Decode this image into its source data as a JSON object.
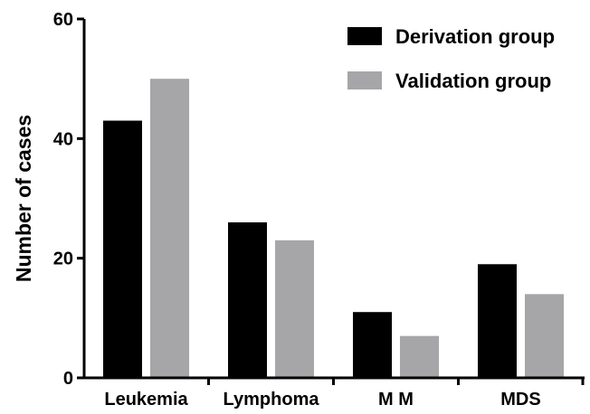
{
  "chart_data": {
    "type": "bar",
    "title": "",
    "xlabel": "",
    "ylabel": "Number of cases",
    "ylim": [
      0,
      60
    ],
    "yticks": [
      0,
      20,
      40,
      60
    ],
    "grid": false,
    "legend_position": "top-right",
    "categories": [
      "Leukemia",
      "Lymphoma",
      "M M",
      "MDS"
    ],
    "series": [
      {
        "name": "Derivation group",
        "color": "#000000",
        "values": [
          43,
          26,
          11,
          19
        ]
      },
      {
        "name": "Validation group",
        "color": "#a6a6a8",
        "values": [
          50,
          23,
          7,
          14
        ]
      }
    ]
  }
}
